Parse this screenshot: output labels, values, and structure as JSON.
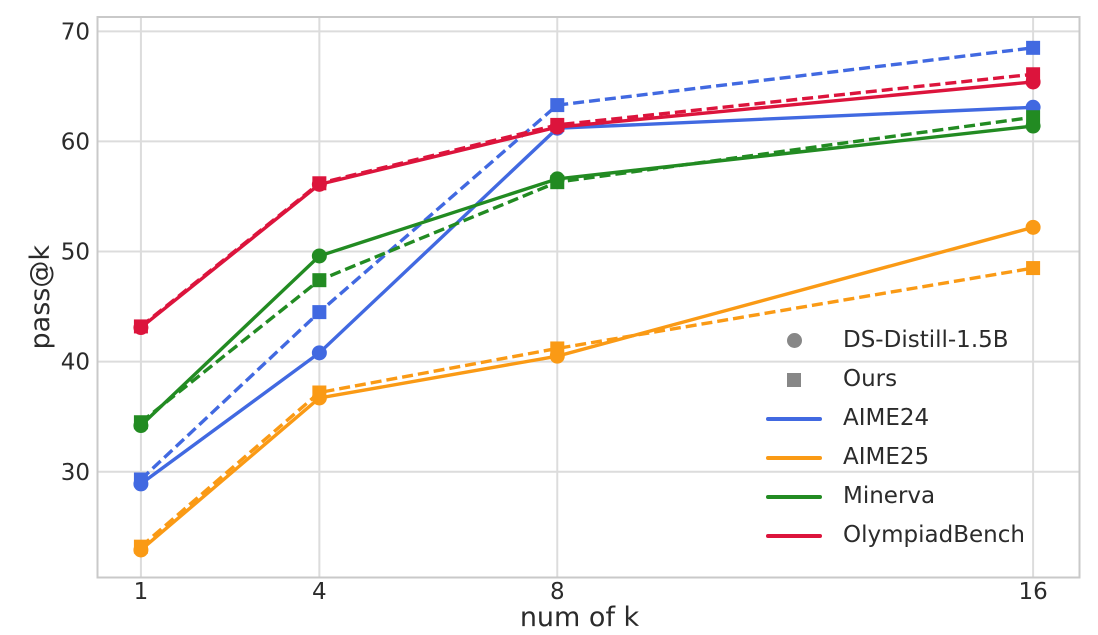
{
  "chart_data": {
    "type": "line",
    "title": "",
    "xlabel": "num of k",
    "ylabel": "pass@k",
    "x": [
      1,
      4,
      8,
      16
    ],
    "x_tick_labels": [
      "1",
      "4",
      "8",
      "16"
    ],
    "xlim": [
      0.27,
      16.78
    ],
    "ylim": [
      20.4,
      71.3
    ],
    "y_ticks": [
      30,
      40,
      50,
      60,
      70
    ],
    "grid": true,
    "styles": {
      "solid_model": "DS-Distill-1.5B",
      "dashed_model": "Ours",
      "grid_color": "#dcdcdc",
      "spine_color": "#c9c9c9",
      "tick_text_color": "#2b2b2b",
      "background": "#ffffff"
    },
    "series": [
      {
        "dataset": "AIME24",
        "model": "DS-Distill-1.5B",
        "color": "#4169E1",
        "style": "solid",
        "marker": "circle",
        "values": [
          28.9,
          40.8,
          61.2,
          63.1
        ]
      },
      {
        "dataset": "AIME24",
        "model": "Ours",
        "color": "#4169E1",
        "style": "dashed",
        "marker": "square",
        "values": [
          29.3,
          44.5,
          63.3,
          68.5
        ]
      },
      {
        "dataset": "AIME25",
        "model": "DS-Distill-1.5B",
        "color": "#FA9A15",
        "style": "solid",
        "marker": "circle",
        "values": [
          22.9,
          36.7,
          40.5,
          52.2
        ]
      },
      {
        "dataset": "AIME25",
        "model": "Ours",
        "color": "#FA9A15",
        "style": "dashed",
        "marker": "square",
        "values": [
          23.2,
          37.2,
          41.2,
          48.5
        ]
      },
      {
        "dataset": "Minerva",
        "model": "DS-Distill-1.5B",
        "color": "#228B22",
        "style": "solid",
        "marker": "circle",
        "values": [
          34.2,
          49.6,
          56.6,
          61.4
        ]
      },
      {
        "dataset": "Minerva",
        "model": "Ours",
        "color": "#228B22",
        "style": "dashed",
        "marker": "square",
        "values": [
          34.5,
          47.4,
          56.3,
          62.2
        ]
      },
      {
        "dataset": "OlympiadBench",
        "model": "DS-Distill-1.5B",
        "color": "#DC143C",
        "style": "solid",
        "marker": "circle",
        "values": [
          43.1,
          56.1,
          61.3,
          65.4
        ]
      },
      {
        "dataset": "OlympiadBench",
        "model": "Ours",
        "color": "#DC143C",
        "style": "dashed",
        "marker": "square",
        "values": [
          43.2,
          56.2,
          61.5,
          66.1
        ]
      }
    ],
    "legend": {
      "position": "center right inside",
      "entries": [
        {
          "label": "DS-Distill-1.5B",
          "swatch": "circle",
          "color": "#878787"
        },
        {
          "label": "Ours",
          "swatch": "square",
          "color": "#878787"
        },
        {
          "label": "AIME24",
          "swatch": "line",
          "color": "#4169E1"
        },
        {
          "label": "AIME25",
          "swatch": "line",
          "color": "#FA9A15"
        },
        {
          "label": "Minerva",
          "swatch": "line",
          "color": "#228B22"
        },
        {
          "label": "OlympiadBench",
          "swatch": "line",
          "color": "#DC143C"
        }
      ]
    }
  }
}
